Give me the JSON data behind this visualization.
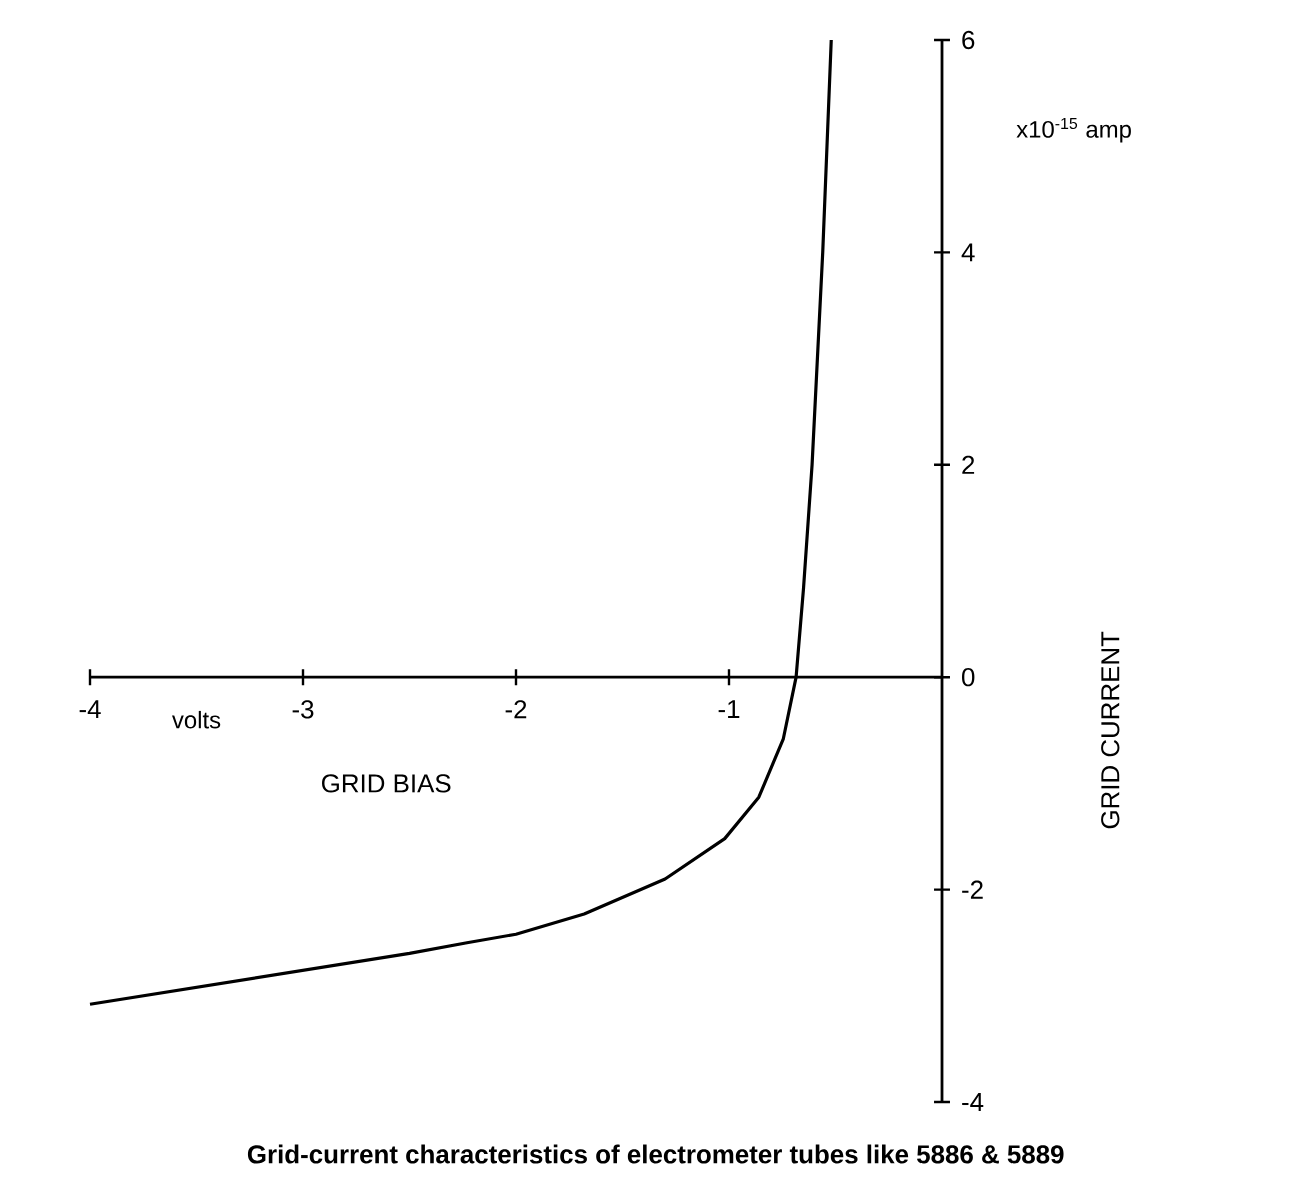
{
  "chart_data": {
    "type": "line",
    "title": "Grid-current characteristics of electrometer tubes like 5886 & 5889",
    "xlabel": "GRID BIAS",
    "ylabel": "GRID CURRENT",
    "annotations": [
      "volts",
      "x10$^{-15}$ amp"
    ],
    "x": [
      -4,
      -3.5,
      -3,
      -2.5,
      -2.23,
      -2,
      -1.68,
      -1.3,
      -1.02,
      -0.86,
      -0.745,
      -0.685,
      -0.65,
      -0.61,
      -0.56,
      -0.52
    ],
    "series": [
      {
        "color": "#000000",
        "values": [
          -3.08,
          -2.92,
          -2.76,
          -2.6,
          -2.5,
          -2.42,
          -2.23,
          -1.9,
          -1.52,
          -1.13,
          -0.58,
          0,
          0.84,
          2.0,
          4.0,
          6.0
        ]
      }
    ],
    "xlim": [
      -4,
      0
    ],
    "ylim": [
      -4,
      6
    ],
    "xticks": [
      -4,
      -3,
      -2,
      -1
    ],
    "yticks": [
      -4,
      -2,
      0,
      2,
      4,
      6
    ],
    "grid": false,
    "marker": "none",
    "line_style": "solid"
  }
}
